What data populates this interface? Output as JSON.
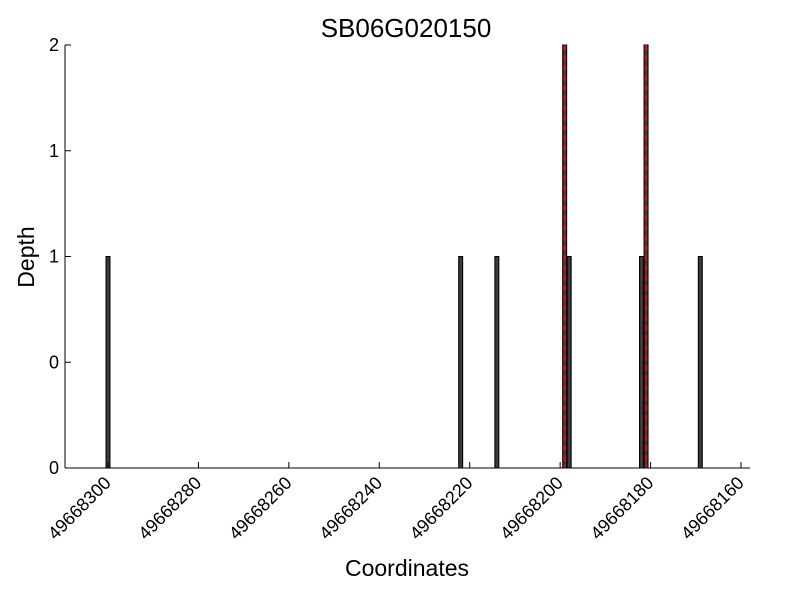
{
  "chart_data": {
    "type": "bar",
    "title": "SB06G020150",
    "xlabel": "Coordinates",
    "ylabel": "Depth",
    "x_axis_reversed": true,
    "xlim": [
      49668310,
      49668158
    ],
    "ylim": [
      0,
      2
    ],
    "x_ticks": [
      49668300,
      49668280,
      49668260,
      49668240,
      49668220,
      49668200,
      49668180,
      49668160
    ],
    "y_ticks": [
      0,
      0.5,
      1,
      1.5,
      2
    ],
    "y_tick_labels": [
      "0",
      "0",
      "1",
      "1",
      "2"
    ],
    "grid": false,
    "series": [
      {
        "color": "#3a3a3a",
        "edge_color": "#000000",
        "x": [
          49668300,
          49668222,
          49668214,
          49668199,
          49668198,
          49668182,
          49668181,
          49668169
        ],
        "values": [
          1,
          1,
          1,
          2,
          1,
          1,
          2,
          1
        ]
      }
    ],
    "highlight_lines": {
      "color": "#ff0000",
      "style": "dashed",
      "x": [
        49668199,
        49668181
      ]
    }
  }
}
